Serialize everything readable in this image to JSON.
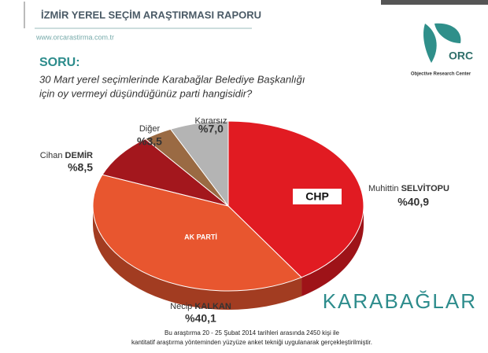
{
  "header": {
    "title": "İZMİR YEREL SEÇİM ARAŞTIRMASI RAPORU",
    "url": "www.orcarastirma.com.tr"
  },
  "logo": {
    "name": "ORC",
    "tagline": "Objective Research Center"
  },
  "question": {
    "label": "SORU:",
    "lines": [
      "30 Mart yerel seçimlerinde Karabağlar Belediye Başkanlığı",
      "için oy vermeyi düşündüğünüz parti hangisidir?"
    ]
  },
  "party_marks": [
    "CHP",
    "AK PARTİ"
  ],
  "district": "KARABAĞLAR",
  "footer": [
    "Bu araştırma 20 - 25 Şubat 2014 tarihleri arasında  2450 kişi ile",
    "kantitatif araştırma yönteminden yüzyüze anket tekniği  uygulanarak gerçekleştirilmiştir."
  ],
  "chart_data": {
    "type": "pie",
    "categories": [
      "Muhittin SELVİTOPU",
      "Necip KALKAN",
      "Cihan DEMİR",
      "Diğer",
      "Kararsız"
    ],
    "values": [
      40.9,
      40.1,
      8.5,
      3.5,
      7.0
    ],
    "value_labels": [
      "%40,9",
      "%40,1",
      "%8,5",
      "%3,5",
      "%7,0"
    ],
    "colors": [
      "#e11b22",
      "#e8562f",
      "#a3171d",
      "#9a6a43",
      "#b4b4b4"
    ]
  }
}
